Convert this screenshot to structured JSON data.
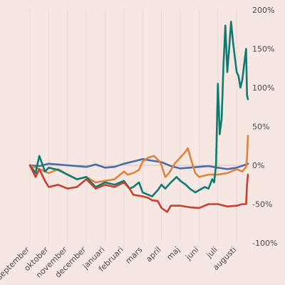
{
  "chart_data": {
    "type": "line",
    "title": "",
    "xlabel": "",
    "ylabel": "",
    "y_unit": "%",
    "ylim": [
      -100,
      200
    ],
    "y_ticks": [
      200,
      150,
      100,
      50,
      0,
      -50,
      -100
    ],
    "y_tick_labels": [
      "200%",
      "150%",
      "100%",
      "50%",
      "0%",
      "-50%",
      "-100%"
    ],
    "x_ticks": [
      0,
      1,
      2,
      3,
      4,
      5,
      6,
      7,
      8,
      9,
      10,
      11
    ],
    "x_tick_labels": [
      "september",
      "oktober",
      "november",
      "december",
      "januari",
      "februari",
      "mars",
      "april",
      "maj",
      "juni",
      "juli",
      "augusti"
    ],
    "xlim": [
      0,
      11.6
    ],
    "grid": true,
    "legend": "none",
    "series": [
      {
        "color": "#4a6aa8",
        "x": [
          0,
          0.5,
          1,
          1.5,
          2,
          2.5,
          3,
          3.5,
          4,
          4.5,
          5,
          5.5,
          6,
          6.5,
          7,
          7.5,
          8,
          8.5,
          9,
          9.5,
          10,
          10.5,
          11,
          11.5,
          11.6
        ],
        "y": [
          0,
          -1,
          2,
          1,
          0,
          -1,
          -2,
          1,
          -3,
          -2,
          2,
          5,
          8,
          6,
          4,
          -1,
          -4,
          -3,
          -2,
          -1,
          -3,
          -5,
          -3,
          1,
          2
        ]
      },
      {
        "color": "#e1823a",
        "x": [
          0,
          0.5,
          1,
          1.5,
          2,
          2.5,
          3,
          3.5,
          4,
          4.5,
          5,
          5.2,
          5.5,
          5.8,
          6,
          6.3,
          6.6,
          6.9,
          7,
          7.2,
          7.4,
          7.7,
          8,
          8.3,
          8.4,
          8.6,
          8.8,
          9,
          9.5,
          10,
          10.5,
          11,
          11.3,
          11.5,
          11.55,
          11.6
        ],
        "y": [
          0,
          -5,
          -10,
          -5,
          -12,
          -18,
          -15,
          -22,
          -20,
          -18,
          -8,
          -12,
          -10,
          -6,
          5,
          10,
          12,
          5,
          0,
          -15,
          -10,
          2,
          10,
          18,
          22,
          5,
          -10,
          -15,
          -12,
          -12,
          -10,
          -5,
          -8,
          -2,
          10,
          38
        ]
      },
      {
        "color": "#0f7a70",
        "x": [
          0,
          0.3,
          0.5,
          0.8,
          1,
          1.5,
          2,
          2.5,
          3,
          3.5,
          4,
          4.5,
          5,
          5.3,
          5.5,
          5.8,
          6,
          6.3,
          6.5,
          6.8,
          7,
          7.2,
          7.5,
          7.8,
          8,
          8.3,
          8.5,
          8.8,
          9,
          9.3,
          9.5,
          9.7,
          9.8,
          9.9,
          10,
          10.1,
          10.2,
          10.3,
          10.4,
          10.5,
          10.6,
          10.7,
          10.8,
          10.9,
          11,
          11.1,
          11.2,
          11.3,
          11.4,
          11.5,
          11.55,
          11.6
        ],
        "y": [
          0,
          -10,
          12,
          -8,
          -3,
          -6,
          -12,
          -18,
          -15,
          -28,
          -22,
          -25,
          -20,
          -30,
          -28,
          -22,
          -35,
          -38,
          -40,
          -32,
          -25,
          -30,
          -22,
          -15,
          -20,
          -25,
          -30,
          -35,
          -32,
          -28,
          -30,
          -18,
          -22,
          0,
          105,
          40,
          60,
          130,
          180,
          120,
          150,
          185,
          160,
          140,
          120,
          115,
          100,
          110,
          130,
          150,
          90,
          85
        ]
      },
      {
        "color": "#c8402f",
        "x": [
          0,
          0.3,
          0.5,
          0.8,
          1,
          1.5,
          2,
          2.5,
          3,
          3.5,
          4,
          4.5,
          5,
          5.3,
          5.5,
          6,
          6.3,
          6.5,
          6.8,
          7,
          7.3,
          7.5,
          8,
          8.5,
          9,
          9.5,
          10,
          10.5,
          11,
          11.3,
          11.5,
          11.55,
          11.6
        ],
        "y": [
          0,
          -15,
          -5,
          -20,
          -28,
          -25,
          -30,
          -28,
          -18,
          -30,
          -25,
          -28,
          -22,
          -30,
          -38,
          -40,
          -42,
          -45,
          -46,
          -55,
          -60,
          -52,
          -52,
          -54,
          -55,
          -50,
          -50,
          -53,
          -52,
          -50,
          -50,
          -25,
          -12
        ]
      }
    ]
  }
}
